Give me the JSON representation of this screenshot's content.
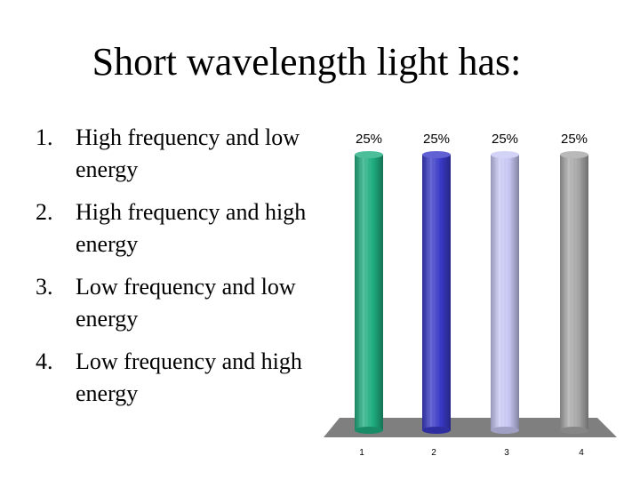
{
  "slide": {
    "title": "Short wavelength light has:"
  },
  "answers": [
    {
      "number": "1.",
      "text": "High frequency and low energy"
    },
    {
      "number": "2.",
      "text": "High frequency and high energy"
    },
    {
      "number": "3.",
      "text": "Low frequency and low energy"
    },
    {
      "number": "4.",
      "text": "Low frequency and high energy"
    }
  ],
  "chart_data": {
    "type": "bar",
    "categories": [
      "1",
      "2",
      "3",
      "4"
    ],
    "values": [
      25,
      25,
      25,
      25
    ],
    "value_labels": [
      "25%",
      "25%",
      "25%",
      "25%"
    ],
    "ylim": [
      0,
      25
    ],
    "colors": [
      "#1fae80",
      "#3a3ac8",
      "#c8c8f5",
      "#a8a8a8"
    ],
    "floor_color": "#7f7f7f",
    "title": "",
    "xlabel": "",
    "ylabel": ""
  }
}
